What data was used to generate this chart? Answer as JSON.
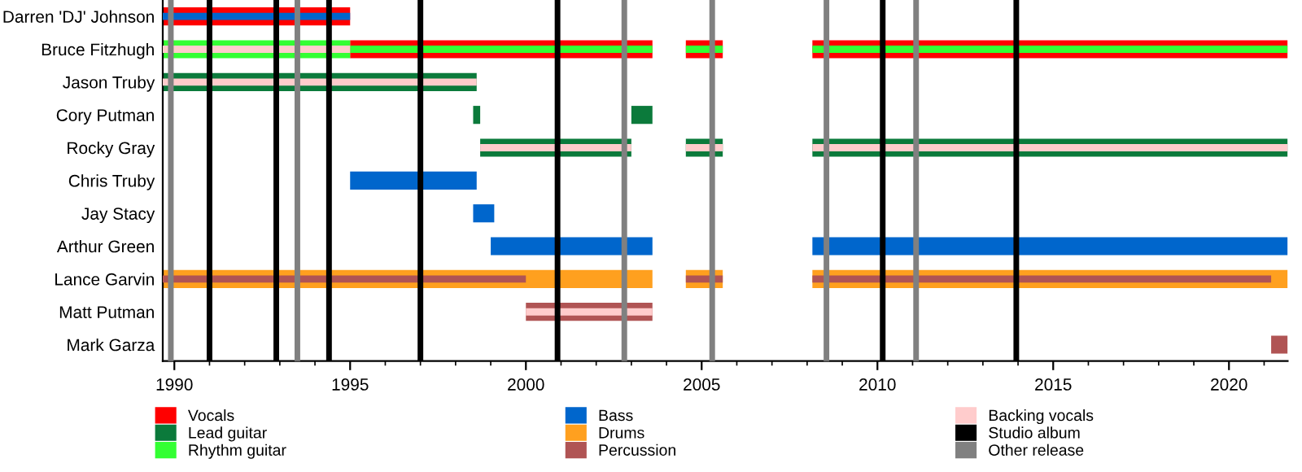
{
  "chart_data": {
    "type": "bar",
    "orientation": "horizontal",
    "legend": "bottom",
    "grid": false,
    "categories": [
      "Darren 'DJ' Johnson",
      "Bruce Fitzhugh",
      "Jason Truby",
      "Cory Putman",
      "Rocky Gray",
      "Chris Truby",
      "Jay Stacy",
      "Arthur Green",
      "Lance Garvin",
      "Matt Putman",
      "Mark Garza"
    ],
    "xlim": [
      1989.67,
      2021.67
    ],
    "xticks": [
      1990,
      {
        "value": 1991,
        "label": null
      },
      {
        "value": 1992,
        "label": null
      },
      {
        "value": 1993,
        "label": null
      },
      {
        "value": 1994,
        "label": null
      },
      1995,
      {
        "value": 1996,
        "label": null
      },
      {
        "value": 1997,
        "label": null
      },
      {
        "value": 1998,
        "label": null
      },
      {
        "value": 1999,
        "label": null
      },
      2000,
      {
        "value": 2001,
        "label": null
      },
      {
        "value": 2002,
        "label": null
      },
      {
        "value": 2003,
        "label": null
      },
      {
        "value": 2004,
        "label": null
      },
      2005,
      {
        "value": 2006,
        "label": null
      },
      {
        "value": 2007,
        "label": null
      },
      {
        "value": 2008,
        "label": null
      },
      {
        "value": 2009,
        "label": null
      },
      2010,
      {
        "value": 2011,
        "label": null
      },
      {
        "value": 2012,
        "label": null
      },
      {
        "value": 2013,
        "label": null
      },
      {
        "value": 2014,
        "label": null
      },
      2015,
      {
        "value": 2016,
        "label": null
      },
      {
        "value": 2017,
        "label": null
      },
      {
        "value": 2018,
        "label": null
      },
      {
        "value": 2019,
        "label": null
      },
      2020,
      {
        "value": 2021,
        "label": null
      }
    ],
    "series": [
      {
        "name": "Vocals",
        "color": "#ff0000",
        "values": [
          5.33,
          8.6,
          null,
          null,
          null,
          null,
          null,
          null,
          null,
          null,
          null
        ],
        "base": [
          1989.67,
          1995.0,
          null,
          null,
          null,
          null,
          null,
          null,
          null,
          null,
          null
        ]
      },
      {
        "color": "#ff0000",
        "values": [
          null,
          1.05,
          null,
          null,
          null,
          null,
          null,
          null,
          null,
          null,
          null
        ],
        "base": [
          null,
          2004.55,
          null,
          null,
          null,
          null,
          null,
          null,
          null,
          null,
          null
        ]
      },
      {
        "color": "#ff0000",
        "values": [
          null,
          13.52,
          null,
          null,
          null,
          null,
          null,
          null,
          null,
          null,
          null
        ],
        "base": [
          null,
          2008.15,
          null,
          null,
          null,
          null,
          null,
          null,
          null,
          null,
          null
        ]
      },
      {
        "name": "Lead guitar",
        "color": "#0b7a3b",
        "values": [
          null,
          null,
          8.93,
          0.2,
          4.3,
          null,
          null,
          null,
          null,
          null,
          null
        ],
        "base": [
          null,
          null,
          1989.67,
          1998.5,
          1998.7,
          null,
          null,
          null,
          null,
          null,
          null
        ]
      },
      {
        "color": "#0b7a3b",
        "values": [
          null,
          null,
          null,
          0.6,
          1.05,
          null,
          null,
          null,
          null,
          null,
          null
        ],
        "base": [
          null,
          null,
          null,
          2003.0,
          2004.55,
          null,
          null,
          null,
          null,
          null,
          null
        ]
      },
      {
        "color": "#0b7a3b",
        "values": [
          null,
          null,
          null,
          null,
          13.52,
          null,
          null,
          null,
          null,
          null,
          null
        ],
        "base": [
          null,
          null,
          null,
          null,
          2008.15,
          null,
          null,
          null,
          null,
          null,
          null
        ]
      },
      {
        "name": "Rhythm guitar",
        "color": "#33ff33",
        "values": [
          null,
          5.33,
          null,
          null,
          null,
          null,
          null,
          null,
          null,
          null,
          null
        ],
        "base": [
          null,
          1989.67,
          null,
          null,
          null,
          null,
          null,
          null,
          null,
          null,
          null
        ]
      },
      {
        "color": "#33ff33",
        "values": [
          null,
          8.6,
          null,
          null,
          null,
          null,
          null,
          null,
          null,
          null,
          null
        ],
        "base": [
          null,
          1995.0,
          null,
          null,
          null,
          null,
          null,
          null,
          null,
          null,
          null
        ]
      },
      {
        "color": "#33ff33",
        "values": [
          null,
          1.05,
          null,
          null,
          null,
          null,
          null,
          null,
          null,
          null,
          null
        ],
        "base": [
          null,
          2004.55,
          null,
          null,
          null,
          null,
          null,
          null,
          null,
          null,
          null
        ]
      },
      {
        "color": "#33ff33",
        "values": [
          null,
          13.52,
          null,
          null,
          null,
          null,
          null,
          null,
          null,
          null,
          null
        ],
        "base": [
          null,
          2008.15,
          null,
          null,
          null,
          null,
          null,
          null,
          null,
          null,
          null
        ]
      },
      {
        "name": "Bass",
        "color": "#0066cc",
        "values": [
          5.33,
          null,
          null,
          null,
          null,
          3.6,
          0.6,
          4.6,
          null,
          null,
          null
        ],
        "base": [
          1989.67,
          null,
          null,
          null,
          null,
          1995.0,
          1998.5,
          1999.0,
          null,
          null,
          null
        ]
      },
      {
        "color": "#0066cc",
        "values": [
          null,
          null,
          null,
          null,
          null,
          null,
          null,
          13.52,
          null,
          null,
          null
        ],
        "base": [
          null,
          null,
          null,
          null,
          null,
          null,
          null,
          2008.15,
          null,
          null,
          null
        ]
      },
      {
        "name": "Drums",
        "color": "#ffa01f",
        "values": [
          null,
          null,
          null,
          null,
          null,
          null,
          null,
          null,
          13.93,
          null,
          null
        ],
        "base": [
          null,
          null,
          null,
          null,
          null,
          null,
          null,
          null,
          1989.67,
          null,
          null
        ]
      },
      {
        "color": "#ffa01f",
        "values": [
          null,
          null,
          null,
          null,
          null,
          null,
          null,
          null,
          1.05,
          null,
          null
        ],
        "base": [
          null,
          null,
          null,
          null,
          null,
          null,
          null,
          null,
          2004.55,
          null,
          null
        ]
      },
      {
        "color": "#ffa01f",
        "values": [
          null,
          null,
          null,
          null,
          null,
          null,
          null,
          null,
          13.52,
          null,
          null
        ],
        "base": [
          null,
          null,
          null,
          null,
          null,
          null,
          null,
          null,
          2008.15,
          null,
          null
        ]
      },
      {
        "name": "Percussion",
        "color": "#b05454",
        "values": [
          null,
          null,
          null,
          null,
          null,
          null,
          null,
          null,
          10.33,
          3.6,
          0.47
        ],
        "base": [
          null,
          null,
          null,
          null,
          null,
          null,
          null,
          null,
          1989.67,
          2000.0,
          2021.2
        ]
      },
      {
        "color": "#b05454",
        "values": [
          null,
          null,
          null,
          null,
          null,
          null,
          null,
          null,
          1.05,
          null,
          null
        ],
        "base": [
          null,
          null,
          null,
          null,
          null,
          null,
          null,
          null,
          2004.55,
          null,
          null
        ]
      },
      {
        "color": "#b05454",
        "values": [
          null,
          null,
          null,
          null,
          null,
          null,
          null,
          null,
          13.05,
          null,
          null
        ],
        "base": [
          null,
          null,
          null,
          null,
          null,
          null,
          null,
          null,
          2008.15,
          null,
          null
        ]
      },
      {
        "name": "Backing vocals",
        "color": "#ffcccc",
        "values": [
          null,
          5.33,
          8.93,
          null,
          4.3,
          null,
          null,
          null,
          null,
          3.6,
          null
        ],
        "base": [
          null,
          1989.67,
          1989.67,
          null,
          1998.7,
          null,
          null,
          null,
          null,
          2000.0,
          null
        ]
      },
      {
        "color": "#ffcccc",
        "values": [
          null,
          null,
          null,
          null,
          1.05,
          null,
          null,
          null,
          null,
          null,
          null
        ],
        "base": [
          null,
          null,
          null,
          null,
          2004.55,
          null,
          null,
          null,
          null,
          null,
          null
        ]
      },
      {
        "color": "#ffcccc",
        "values": [
          null,
          null,
          null,
          null,
          13.52,
          null,
          null,
          null,
          null,
          null,
          null
        ],
        "base": [
          null,
          null,
          null,
          null,
          2008.15,
          null,
          null,
          null,
          null,
          null,
          null
        ]
      }
    ],
    "ref_lines": [
      {
        "axis": "x",
        "value": 1991.0,
        "label": "Studio album",
        "color": "#000000"
      },
      {
        "axis": "x",
        "value": 1992.9,
        "color": "#000000"
      },
      {
        "axis": "x",
        "value": 1994.4,
        "color": "#000000"
      },
      {
        "axis": "x",
        "value": 1997.0,
        "color": "#000000"
      },
      {
        "axis": "x",
        "value": 2000.9,
        "color": "#000000"
      },
      {
        "axis": "x",
        "value": 2010.15,
        "color": "#000000"
      },
      {
        "axis": "x",
        "value": 2013.95,
        "color": "#000000"
      },
      {
        "axis": "x",
        "value": 1989.9,
        "label": "Other release",
        "color": "#808080"
      },
      {
        "axis": "x",
        "value": 1993.5,
        "color": "#808080"
      },
      {
        "axis": "x",
        "value": 2002.8,
        "color": "#808080"
      },
      {
        "axis": "x",
        "value": 2005.3,
        "color": "#808080"
      },
      {
        "axis": "x",
        "value": 2008.55,
        "color": "#808080"
      },
      {
        "axis": "x",
        "value": 2011.1,
        "color": "#808080"
      }
    ]
  }
}
